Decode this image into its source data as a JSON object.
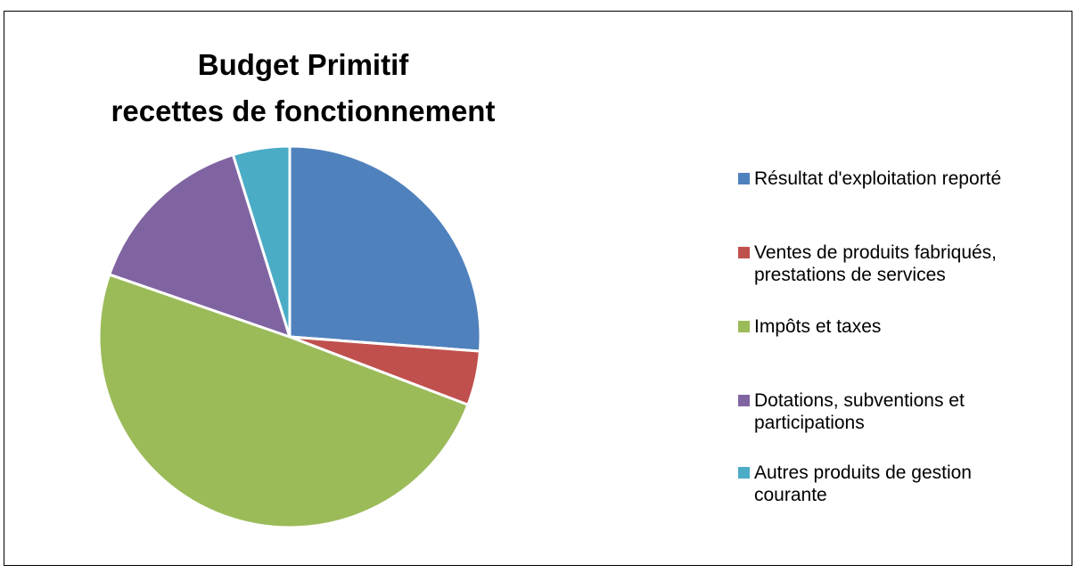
{
  "chart_data": {
    "type": "pie",
    "title": [
      "Budget Primitif",
      "recettes de fonctionnement"
    ],
    "categories": [
      "Résultat d'exploitation reporté",
      "Ventes de produits fabriqués, prestations de services",
      "Impôts et taxes",
      "Dotations, subventions et participations",
      "Autres produits de gestion courante"
    ],
    "values": [
      26.2,
      4.6,
      49.5,
      14.9,
      4.8
    ],
    "colors": [
      "#4f81bd",
      "#c0504d",
      "#9bbb59",
      "#8064a2",
      "#4bacc6"
    ],
    "legend": "right"
  }
}
